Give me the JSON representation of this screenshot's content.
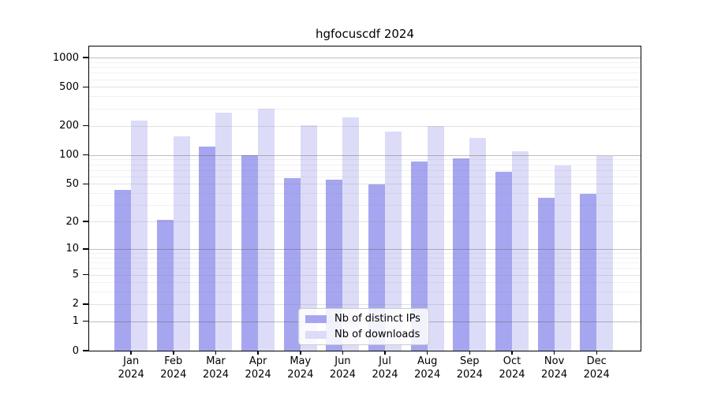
{
  "chart_data": {
    "type": "bar",
    "title": "hgfocuscdf 2024",
    "categories": [
      "Jan",
      "Feb",
      "Mar",
      "Apr",
      "May",
      "Jun",
      "Jul",
      "Aug",
      "Sep",
      "Oct",
      "Nov",
      "Dec"
    ],
    "x_year_label": "2024",
    "series": [
      {
        "name": "Nb of distinct IPs",
        "color": "#a6a6f0",
        "values": [
          43,
          21,
          122,
          100,
          57,
          55,
          49,
          85,
          92,
          67,
          36,
          39
        ]
      },
      {
        "name": "Nb of downloads",
        "color": "#dcdcf8",
        "values": [
          225,
          155,
          270,
          297,
          204,
          242,
          175,
          200,
          151,
          110,
          78,
          98
        ]
      }
    ],
    "xlabel": "",
    "ylabel": "",
    "y_scale": "log1p",
    "y_ticks": [
      1000,
      500,
      200,
      100,
      50,
      20,
      10,
      5,
      2,
      1,
      0
    ],
    "ylim": [
      0,
      1300
    ],
    "grid": true,
    "legend_position": "lower-center"
  }
}
